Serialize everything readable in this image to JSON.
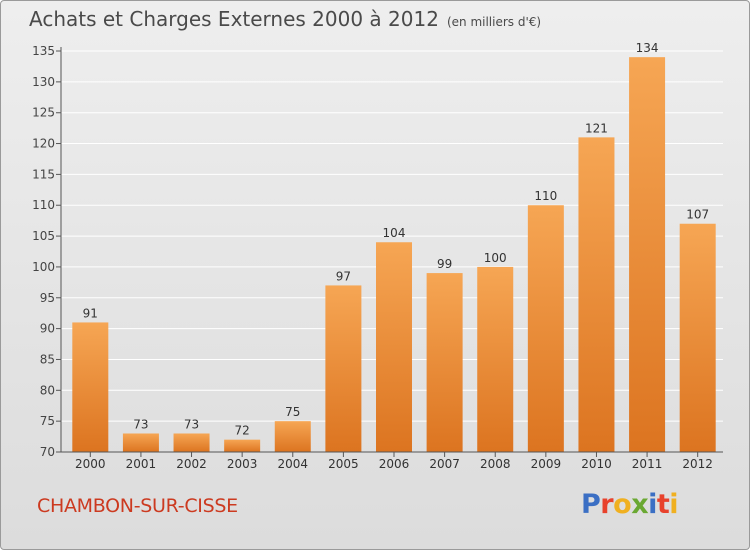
{
  "title": "Achats et Charges Externes 2000 à 2012",
  "subtitle": "(en milliers d'€)",
  "commune": "CHAMBON-SUR-CISSE",
  "logo": {
    "text": "Proxiti",
    "colors": [
      "#3b6fc4",
      "#e8422c",
      "#f0b020",
      "#6aa832",
      "#3b6fc4",
      "#e8422c",
      "#f0b020"
    ]
  },
  "colors": {
    "bar_light": "#f6a654",
    "bar_dark": "#dc7420",
    "accent": "#cc3a20",
    "grid": "#ffffff",
    "axis": "#555555"
  },
  "chart_data": {
    "type": "bar",
    "categories": [
      "2000",
      "2001",
      "2002",
      "2003",
      "2004",
      "2005",
      "2006",
      "2007",
      "2008",
      "2009",
      "2010",
      "2011",
      "2012"
    ],
    "values": [
      91,
      73,
      73,
      72,
      75,
      97,
      104,
      99,
      100,
      110,
      121,
      134,
      107
    ],
    "ylim": [
      70,
      135
    ],
    "yticks": [
      70,
      75,
      80,
      85,
      90,
      95,
      100,
      105,
      110,
      115,
      120,
      125,
      130,
      135
    ],
    "grid": true,
    "legend": "none",
    "xlabel": "",
    "ylabel": ""
  }
}
